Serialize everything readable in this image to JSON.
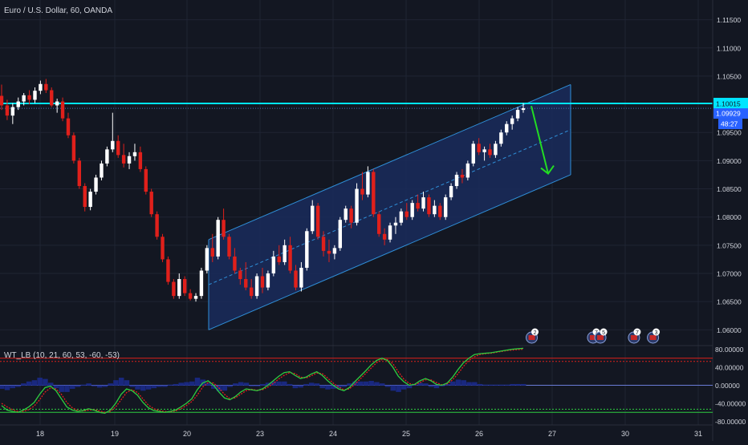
{
  "header": {
    "symbol_title": "Euro / U.S. Dollar, 60, OANDA"
  },
  "price_panel": {
    "y_ticks": [
      "1.11500",
      "1.11000",
      "1.10500",
      "1.09500",
      "1.09000",
      "1.08500",
      "1.08000",
      "1.07500",
      "1.07000",
      "1.06500",
      "1.06000"
    ],
    "y_tick_values": [
      1.115,
      1.11,
      1.105,
      1.095,
      1.09,
      1.085,
      1.08,
      1.075,
      1.07,
      1.065,
      1.06
    ],
    "resistance_label": "1.10015",
    "resistance_value": 1.10015,
    "last_price_label": "1.09929",
    "last_price_value": 1.09929,
    "countdown_label": "48:27",
    "colors": {
      "background": "#131722",
      "up_candle": "#ffffff",
      "down_candle": "#e0201b",
      "resistance_line": "#00e5ff",
      "channel_line": "#2f8fd8",
      "channel_fill": "#1a2c5c",
      "arrow": "#22dd22",
      "grid": "#1f2433",
      "axis_text": "#d1d4dc"
    },
    "event_markers": [
      {
        "label": "2",
        "x_day": 26.72
      },
      {
        "label": "7",
        "x_day": 27.56
      },
      {
        "label": "5",
        "x_day": 27.66
      },
      {
        "label": "7",
        "x_day": 30.12
      },
      {
        "label": "3",
        "x_day": 30.38
      }
    ]
  },
  "indicator_panel": {
    "title": "WT_LB (10, 21, 60, 53, -60, -53)",
    "y_ticks": [
      "80.00000",
      "40.00000",
      "0.00000",
      "-40.00000",
      "-80.00000"
    ],
    "y_tick_values": [
      80,
      40,
      0,
      -40,
      -80
    ],
    "colors": {
      "wt1": "#2ecc40",
      "wt2": "#e0201b",
      "overbought": "#e0201b",
      "oversold": "#2ecc40",
      "zero": "#6a7bd6",
      "histogram": "#1b2a8a"
    }
  },
  "x_axis": {
    "ticks": [
      "18",
      "19",
      "20",
      "23",
      "24",
      "25",
      "26",
      "27",
      "30",
      "31"
    ]
  },
  "chart_data": {
    "type": "candlestick",
    "symbol": "Euro / U.S. Dollar",
    "interval": "60",
    "source": "OANDA",
    "y_range": [
      1.0572,
      1.1185
    ],
    "x_categories": [
      "18",
      "19",
      "20",
      "23",
      "24",
      "25",
      "26",
      "27",
      "30",
      "31"
    ],
    "candles_ohlc": [
      [
        1.1015,
        1.1035,
        1.099,
        1.0998
      ],
      [
        1.0998,
        1.1008,
        1.0972,
        1.098
      ],
      [
        1.098,
        1.1002,
        1.0965,
        1.0995
      ],
      [
        1.0995,
        1.1012,
        1.099,
        1.1005
      ],
      [
        1.1005,
        1.102,
        1.0998,
        1.1016
      ],
      [
        1.1016,
        1.1025,
        1.1,
        1.1008
      ],
      [
        1.1008,
        1.103,
        1.1002,
        1.1024
      ],
      [
        1.1024,
        1.1042,
        1.1018,
        1.1036
      ],
      [
        1.1036,
        1.1045,
        1.102,
        1.1025
      ],
      [
        1.1025,
        1.103,
        1.0995,
        1.0998
      ],
      [
        1.0998,
        1.101,
        1.0985,
        1.1005
      ],
      [
        1.1005,
        1.1012,
        1.097,
        1.0975
      ],
      [
        1.0975,
        1.0985,
        1.094,
        1.0945
      ],
      [
        1.0945,
        1.095,
        1.0895,
        1.09
      ],
      [
        1.09,
        1.0905,
        1.085,
        1.0855
      ],
      [
        1.0855,
        1.086,
        1.081,
        1.0818
      ],
      [
        1.0818,
        1.085,
        1.0812,
        1.0845
      ],
      [
        1.0845,
        1.0875,
        1.084,
        1.087
      ],
      [
        1.087,
        1.09,
        1.0865,
        1.0895
      ],
      [
        1.0895,
        1.0925,
        1.089,
        1.092
      ],
      [
        1.092,
        1.0985,
        1.0915,
        1.0935
      ],
      [
        1.0935,
        1.0945,
        1.0905,
        1.091
      ],
      [
        1.091,
        1.093,
        1.0888,
        1.0895
      ],
      [
        1.0895,
        1.0915,
        1.0885,
        1.0908
      ],
      [
        1.0908,
        1.093,
        1.09,
        1.0915
      ],
      [
        1.0915,
        1.0925,
        1.088,
        1.0885
      ],
      [
        1.0885,
        1.089,
        1.084,
        1.0845
      ],
      [
        1.0845,
        1.085,
        1.08,
        1.0805
      ],
      [
        1.0805,
        1.081,
        1.076,
        1.0765
      ],
      [
        1.0765,
        1.077,
        1.072,
        1.0725
      ],
      [
        1.0725,
        1.073,
        1.068,
        1.0685
      ],
      [
        1.0685,
        1.069,
        1.0655,
        1.066
      ],
      [
        1.066,
        1.07,
        1.0655,
        1.069
      ],
      [
        1.069,
        1.0695,
        1.066,
        1.0665
      ],
      [
        1.0665,
        1.0672,
        1.0652,
        1.0655
      ],
      [
        1.0655,
        1.0665,
        1.065,
        1.066
      ],
      [
        1.066,
        1.071,
        1.0655,
        1.0705
      ],
      [
        1.0705,
        1.075,
        1.07,
        1.0745
      ],
      [
        1.0745,
        1.077,
        1.072,
        1.073
      ],
      [
        1.073,
        1.08,
        1.0725,
        1.0795
      ],
      [
        1.0795,
        1.0815,
        1.076,
        1.0765
      ],
      [
        1.0765,
        1.077,
        1.0725,
        1.073
      ],
      [
        1.073,
        1.0745,
        1.07,
        1.0705
      ],
      [
        1.0705,
        1.071,
        1.068,
        1.069
      ],
      [
        1.069,
        1.072,
        1.067,
        1.0675
      ],
      [
        1.0675,
        1.069,
        1.0655,
        1.066
      ],
      [
        1.066,
        1.07,
        1.0655,
        1.0695
      ],
      [
        1.0695,
        1.071,
        1.0665,
        1.0675
      ],
      [
        1.0675,
        1.0705,
        1.067,
        1.07
      ],
      [
        1.07,
        1.074,
        1.0695,
        1.073
      ],
      [
        1.073,
        1.075,
        1.0715,
        1.072
      ],
      [
        1.072,
        1.076,
        1.0715,
        1.075
      ],
      [
        1.075,
        1.0765,
        1.07,
        1.0705
      ],
      [
        1.0705,
        1.0715,
        1.067,
        1.0675
      ],
      [
        1.0675,
        1.072,
        1.0668,
        1.071
      ],
      [
        1.071,
        1.078,
        1.0705,
        1.0775
      ],
      [
        1.0775,
        1.083,
        1.077,
        1.082
      ],
      [
        1.082,
        1.0825,
        1.076,
        1.0765
      ],
      [
        1.0765,
        1.0775,
        1.073,
        1.074
      ],
      [
        1.074,
        1.076,
        1.072,
        1.0735
      ],
      [
        1.0735,
        1.075,
        1.0725,
        1.0745
      ],
      [
        1.0745,
        1.08,
        1.074,
        1.0795
      ],
      [
        1.0795,
        1.082,
        1.079,
        1.0815
      ],
      [
        1.0815,
        1.082,
        1.078,
        1.079
      ],
      [
        1.079,
        1.086,
        1.0785,
        1.085
      ],
      [
        1.085,
        1.088,
        1.083,
        1.084
      ],
      [
        1.084,
        1.089,
        1.0835,
        1.088
      ],
      [
        1.088,
        1.0885,
        1.08,
        1.0805
      ],
      [
        1.0805,
        1.081,
        1.0765,
        1.077
      ],
      [
        1.077,
        1.078,
        1.075,
        1.076
      ],
      [
        1.076,
        1.079,
        1.0755,
        1.0785
      ],
      [
        1.0785,
        1.08,
        1.077,
        1.079
      ],
      [
        1.079,
        1.0815,
        1.0785,
        1.081
      ],
      [
        1.081,
        1.0825,
        1.0795,
        1.08
      ],
      [
        1.08,
        1.083,
        1.0795,
        1.0825
      ],
      [
        1.0825,
        1.084,
        1.081,
        1.0815
      ],
      [
        1.0815,
        1.0845,
        1.081,
        1.0835
      ],
      [
        1.0835,
        1.084,
        1.08,
        1.0805
      ],
      [
        1.0805,
        1.083,
        1.08,
        1.082
      ],
      [
        1.082,
        1.0825,
        1.0795,
        1.08
      ],
      [
        1.08,
        1.084,
        1.0795,
        1.0835
      ],
      [
        1.0835,
        1.086,
        1.083,
        1.0855
      ],
      [
        1.0855,
        1.088,
        1.085,
        1.0875
      ],
      [
        1.0875,
        1.0885,
        1.086,
        1.087
      ],
      [
        1.087,
        1.09,
        1.0865,
        1.0895
      ],
      [
        1.0895,
        1.0935,
        1.089,
        1.093
      ],
      [
        1.093,
        1.094,
        1.091,
        1.0915
      ],
      [
        1.0915,
        1.0925,
        1.09,
        1.092
      ],
      [
        1.092,
        1.093,
        1.0905,
        1.091
      ],
      [
        1.091,
        1.0935,
        1.0905,
        1.093
      ],
      [
        1.093,
        1.0955,
        1.0925,
        1.095
      ],
      [
        1.095,
        1.097,
        1.0945,
        1.0965
      ],
      [
        1.0965,
        1.098,
        1.0955,
        1.0975
      ],
      [
        1.0975,
        1.0995,
        1.097,
        1.099
      ],
      [
        1.099,
        1.1002,
        1.0985,
        1.0993
      ]
    ],
    "overlays": {
      "resistance_level": 1.10015,
      "rising_channel": {
        "start_day": "20",
        "end_day": "27",
        "lower_start": 1.06,
        "lower_end": 1.0875,
        "upper_start": 1.076,
        "upper_end": 1.1035
      },
      "projection_arrow": {
        "from": 1.0997,
        "to": 1.0877
      }
    },
    "indicator": {
      "name": "WT_LB",
      "params": [
        10,
        21,
        60,
        53,
        -60,
        -53
      ],
      "y_range": [
        -88,
        88
      ],
      "levels": {
        "ob1": 60,
        "ob2": 53,
        "os1": -60,
        "os2": -53
      },
      "wt1": [
        -45,
        -55,
        -58,
        -60,
        -55,
        -48,
        -38,
        -20,
        -5,
        -2,
        -12,
        -30,
        -48,
        -55,
        -58,
        -56,
        -52,
        -55,
        -60,
        -62,
        -55,
        -40,
        -20,
        -8,
        -12,
        -22,
        -38,
        -50,
        -56,
        -58,
        -60,
        -58,
        -55,
        -48,
        -40,
        -30,
        -10,
        5,
        10,
        0,
        -15,
        -28,
        -32,
        -25,
        -15,
        -8,
        -10,
        -12,
        -8,
        0,
        10,
        20,
        28,
        30,
        22,
        15,
        18,
        25,
        30,
        22,
        10,
        0,
        -8,
        -12,
        -5,
        8,
        20,
        32,
        45,
        55,
        60,
        55,
        40,
        20,
        8,
        0,
        2,
        10,
        15,
        10,
        2,
        0,
        5,
        18,
        35,
        50,
        60,
        68,
        70,
        71,
        72,
        74,
        76,
        78,
        80,
        81,
        82
      ],
      "wt2": [
        -40,
        -48,
        -54,
        -58,
        -58,
        -54,
        -46,
        -32,
        -15,
        -6,
        -8,
        -20,
        -38,
        -50,
        -56,
        -57,
        -55,
        -54,
        -57,
        -60,
        -58,
        -48,
        -32,
        -16,
        -10,
        -16,
        -30,
        -44,
        -52,
        -56,
        -58,
        -59,
        -57,
        -52,
        -45,
        -36,
        -22,
        -4,
        6,
        5,
        -6,
        -20,
        -30,
        -28,
        -20,
        -12,
        -9,
        -11,
        -10,
        -4,
        4,
        14,
        22,
        28,
        26,
        18,
        16,
        21,
        27,
        26,
        16,
        5,
        -4,
        -10,
        -8,
        2,
        14,
        26,
        38,
        50,
        57,
        57,
        48,
        30,
        14,
        4,
        1,
        6,
        12,
        12,
        6,
        1,
        3,
        12,
        26,
        42,
        55,
        63,
        68,
        70,
        71,
        73,
        75,
        77,
        78,
        79,
        80
      ]
    }
  }
}
